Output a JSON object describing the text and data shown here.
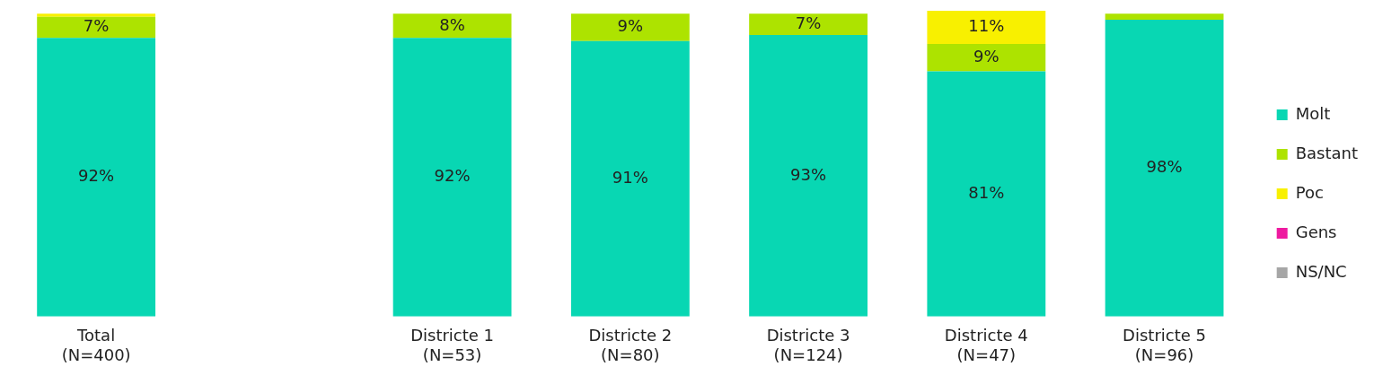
{
  "chart_data": {
    "type": "bar",
    "stacked": true,
    "legend": "right",
    "tick_labels": "x",
    "grid": false,
    "ylim": [
      0,
      101
    ],
    "categories": [
      "Total\n(N=400)",
      null,
      "Districte 1\n(N=53)",
      "Districte 2\n(N=80)",
      "Districte 3\n(N=124)",
      "Districte 4\n(N=47)",
      "Districte 5\n(N=96)"
    ],
    "series": [
      {
        "name": "Molt",
        "color": "#08d7b3",
        "values": [
          92,
          null,
          92,
          91,
          93,
          81,
          98
        ],
        "value_labels": [
          "92%",
          null,
          "92%",
          "91%",
          "93%",
          "81%",
          "98%"
        ]
      },
      {
        "name": "Bastant",
        "color": "#ade300",
        "values": [
          7,
          null,
          8,
          9,
          7,
          9,
          2
        ],
        "value_labels": [
          "7%",
          null,
          "8%",
          "9%",
          "7%",
          "9%",
          null
        ]
      },
      {
        "name": "Poc",
        "color": "#f8f000",
        "values": [
          1,
          null,
          0,
          0,
          0,
          11,
          0
        ],
        "value_labels": [
          null,
          null,
          null,
          null,
          null,
          "11%",
          null
        ]
      },
      {
        "name": "Gens",
        "color": "#ee1aa0",
        "values": [
          0,
          null,
          0,
          0,
          0,
          0,
          0
        ]
      },
      {
        "name": "NS/NC",
        "color": "#a6a6a6",
        "values": [
          0,
          null,
          0,
          0,
          0,
          0,
          0
        ]
      }
    ]
  }
}
